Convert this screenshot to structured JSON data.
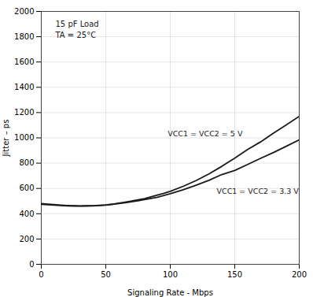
{
  "chart_data": {
    "type": "line",
    "xlabel": "Signaling Rate - Mbps",
    "ylabel": "Jitter – ps",
    "xlim": [
      0,
      200
    ],
    "ylim": [
      0,
      2000
    ],
    "xticks": [
      0,
      50,
      100,
      150,
      200
    ],
    "yticks": [
      0,
      200,
      400,
      600,
      800,
      1000,
      1200,
      1400,
      1600,
      1800,
      2000
    ],
    "grid": true,
    "series": [
      {
        "color": "#1a1a1a",
        "x": [
          0,
          5,
          10,
          15,
          20,
          25,
          30,
          35,
          40,
          45,
          50,
          55,
          60,
          65,
          70,
          75,
          80,
          85,
          90,
          95,
          100,
          110,
          120,
          130,
          140,
          150,
          160,
          170,
          180,
          190,
          200
        ],
        "values": [
          475,
          472,
          468,
          465,
          462,
          461,
          460,
          461,
          462,
          465,
          468,
          474,
          483,
          492,
          500,
          510,
          520,
          533,
          547,
          561,
          577,
          617,
          662,
          715,
          775,
          840,
          908,
          968,
          1038,
          1103,
          1170
        ]
      },
      {
        "color": "#1a1a1a",
        "x": [
          0,
          5,
          10,
          15,
          20,
          25,
          30,
          35,
          40,
          45,
          50,
          55,
          60,
          65,
          70,
          75,
          80,
          85,
          90,
          95,
          100,
          110,
          120,
          130,
          140,
          150,
          160,
          170,
          180,
          190,
          200
        ],
        "values": [
          480,
          476,
          472,
          468,
          465,
          463,
          462,
          463,
          464,
          467,
          470,
          475,
          481,
          487,
          495,
          503,
          511,
          521,
          531,
          544,
          558,
          590,
          625,
          664,
          710,
          742,
          790,
          838,
          884,
          934,
          984
        ]
      }
    ],
    "annotations": [
      {
        "text": "15 pF Load"
      },
      {
        "text": "TA = 25°C"
      },
      {
        "text": "VCC1 = VCC2 = 5 V",
        "x": 98,
        "y": 1010
      },
      {
        "text": "VCC1 = VCC2 = 3.3 V",
        "x": 136,
        "y": 558
      }
    ]
  }
}
